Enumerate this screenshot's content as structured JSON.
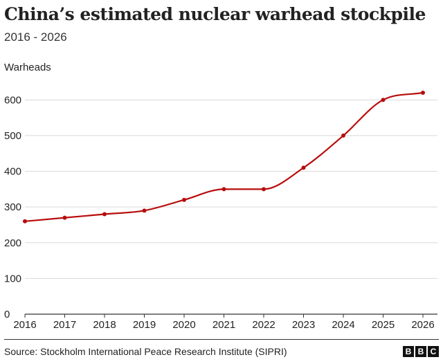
{
  "chart_data": {
    "type": "line",
    "title": "China’s estimated nuclear warhead stockpile",
    "subtitle": "2016 - 2026",
    "ylabel": "Warheads",
    "xlabel": "",
    "x": [
      2016,
      2017,
      2018,
      2019,
      2020,
      2021,
      2022,
      2023,
      2024,
      2025,
      2026
    ],
    "series": [
      {
        "values": [
          260,
          270,
          280,
          290,
          320,
          350,
          350,
          410,
          500,
          600,
          620
        ]
      }
    ],
    "ylim": [
      0,
      620
    ],
    "yticks": [
      0,
      100,
      200,
      300,
      400,
      500,
      600
    ],
    "xtick_labels": [
      "2016",
      "2017",
      "2018",
      "2019",
      "2020",
      "2021",
      "2022",
      "2023",
      "2024",
      "2025",
      "2026"
    ],
    "ytick_labels": [
      "0",
      "100",
      "200",
      "300",
      "400",
      "500",
      "600"
    ],
    "grid": "horizontal",
    "line_color": "#b80c0c"
  },
  "footer": {
    "source": "Source: Stockholm International Peace Research Institute (SIPRI)",
    "logo_letters": [
      "B",
      "B",
      "C"
    ]
  }
}
